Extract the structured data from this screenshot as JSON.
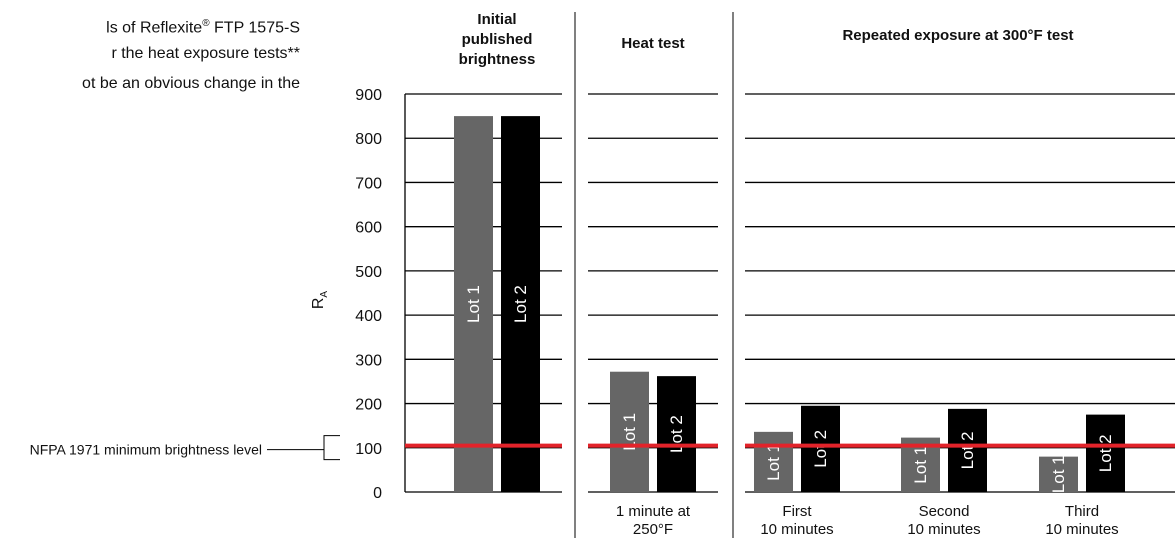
{
  "intro": {
    "line1_before": "ls of Reflexite",
    "line1_reg": "®",
    "line1_after": " FTP 1575-S",
    "line2": "r the heat exposure tests**",
    "line3": "ot be an obvious change in the"
  },
  "chart_data": {
    "type": "bar",
    "title": "",
    "xlabel": "",
    "ylabel_main": "R",
    "ylabel_sub": "A",
    "ylim": [
      0,
      900
    ],
    "y_ticks": [
      0,
      100,
      200,
      300,
      400,
      500,
      600,
      700,
      800,
      900
    ],
    "grid": true,
    "section_headers": [
      [
        "Initial",
        "published",
        "brightness"
      ],
      [
        "Heat test"
      ],
      [
        "Repeated exposure at 300°F test"
      ]
    ],
    "groups": [
      {
        "section": 0,
        "label": [],
        "bars": [
          {
            "label": "Lot 1",
            "value": 850
          },
          {
            "label": "Lot 2",
            "value": 850
          }
        ]
      },
      {
        "section": 1,
        "label": [
          "1 minute at",
          "250°F"
        ],
        "bars": [
          {
            "label": "Lot 1",
            "value": 272
          },
          {
            "label": "Lot 2",
            "value": 262
          }
        ]
      },
      {
        "section": 2,
        "label": [
          "First",
          "10 minutes"
        ],
        "bars": [
          {
            "label": "Lot 1",
            "value": 136
          },
          {
            "label": "Lot 2",
            "value": 195
          }
        ]
      },
      {
        "section": 2,
        "label": [
          "Second",
          "10 minutes"
        ],
        "bars": [
          {
            "label": "Lot 1",
            "value": 123
          },
          {
            "label": "Lot 2",
            "value": 188
          }
        ]
      },
      {
        "section": 2,
        "label": [
          "Third",
          "10 minutes"
        ],
        "bars": [
          {
            "label": "Lot 1",
            "value": 80
          },
          {
            "label": "Lot 2",
            "value": 175
          }
        ]
      }
    ],
    "reference_line": {
      "value": 105,
      "label": "NFPA 1971 minimum brightness level",
      "color": "#e2232a"
    },
    "colors": {
      "lot1": "#666666",
      "lot2": "#000000",
      "bar_text": "#ffffff"
    }
  }
}
